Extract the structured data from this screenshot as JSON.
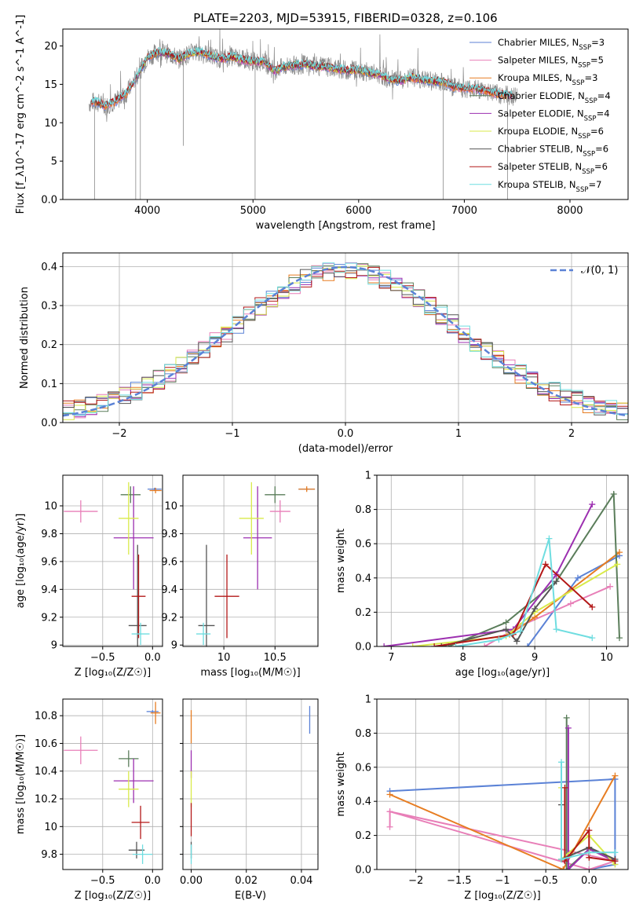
{
  "colors": {
    "Chabrier MILES": "#5b82d6",
    "Salpeter MILES": "#e87fb8",
    "Kroupa MILES": "#e77d22",
    "Chabrier ELODIE": "#5a7d5a",
    "Salpeter ELODIE": "#9c2fb0",
    "Kroupa ELODIE": "#d9ea4a",
    "Chabrier STELIB": "#555555",
    "Salpeter STELIB": "#b31818",
    "Kroupa STELIB": "#6fdde0",
    "gauss": "#5b82d6"
  },
  "chart_data": [
    {
      "type": "line",
      "title": "PLATE=2203, MJD=53915, FIBERID=0328, z=0.106",
      "xlabel": "wavelength [Angstrom, rest frame]",
      "ylabel": "Flux [f_λ10^-17 erg cm^-2 s^-1 A^-1]",
      "xlim": [
        3200,
        8550
      ],
      "ylim": [
        0,
        22.2
      ],
      "xticks": [
        4000,
        5000,
        6000,
        7000,
        8000
      ],
      "yticks": [
        0,
        5,
        10,
        15,
        20
      ],
      "legend_position": "top-right",
      "spectrum_x": [
        3450,
        3500,
        3600,
        3700,
        3800,
        3900,
        4000,
        4100,
        4200,
        4300,
        4400,
        4500,
        4600,
        4700,
        4800,
        4900,
        5000,
        5100,
        5200,
        5300,
        5400,
        5500,
        5600,
        5700,
        5800,
        5900,
        6000,
        6100,
        6200,
        6300,
        6400,
        6500,
        6600,
        6700,
        6800,
        6900,
        7000,
        7100,
        7200,
        7300,
        7400,
        7500
      ],
      "spectrum_y": [
        12.5,
        12.8,
        12.2,
        12.8,
        13.8,
        16,
        18.5,
        19.2,
        19.0,
        18.3,
        19.0,
        19.3,
        18.7,
        18.3,
        18.6,
        18.2,
        18.0,
        18.0,
        16.8,
        17.3,
        17.5,
        17.6,
        17.3,
        17.3,
        17.0,
        16.8,
        16.9,
        16.5,
        16.3,
        15.6,
        15.5,
        15.9,
        15.6,
        15.4,
        15.4,
        14.6,
        14.5,
        14.4,
        14.2,
        13.8,
        13.6,
        13.4
      ],
      "series": [
        {
          "name": "Chabrier MILES, N_SSP=3",
          "label_main": "Chabrier MILES, N",
          "label_sub": "SSP",
          "label_tail": "=3"
        },
        {
          "name": "Salpeter MILES, N_SSP=5",
          "label_main": "Salpeter MILES, N",
          "label_sub": "SSP",
          "label_tail": "=5"
        },
        {
          "name": "Kroupa MILES, N_SSP=3",
          "label_main": "Kroupa MILES, N",
          "label_sub": "SSP",
          "label_tail": "=3"
        },
        {
          "name": "Chabrier ELODIE, N_SSP=4",
          "label_main": "Chabrier ELODIE, N",
          "label_sub": "SSP",
          "label_tail": "=4"
        },
        {
          "name": "Salpeter ELODIE, N_SSP=4",
          "label_main": "Salpeter ELODIE, N",
          "label_sub": "SSP",
          "label_tail": "=4"
        },
        {
          "name": "Kroupa ELODIE, N_SSP=6",
          "label_main": "Kroupa ELODIE, N",
          "label_sub": "SSP",
          "label_tail": "=6"
        },
        {
          "name": "Chabrier STELIB, N_SSP=6",
          "label_main": "Chabrier STELIB, N",
          "label_sub": "SSP",
          "label_tail": "=6"
        },
        {
          "name": "Salpeter STELIB, N_SSP=6",
          "label_main": "Salpeter STELIB, N",
          "label_sub": "SSP",
          "label_tail": "=6"
        },
        {
          "name": "Kroupa STELIB, N_SSP=7",
          "label_main": "Kroupa STELIB, N",
          "label_sub": "SSP",
          "label_tail": "=7"
        }
      ]
    },
    {
      "type": "histogram",
      "xlabel": "(data-model)/error",
      "ylabel": "Normed distribution",
      "xlim": [
        -2.5,
        2.5
      ],
      "ylim": [
        0,
        0.435
      ],
      "xticks": [
        -2,
        -1,
        0,
        1,
        2
      ],
      "yticks": [
        0.0,
        0.1,
        0.2,
        0.3,
        0.4
      ],
      "grid": true,
      "bin_width": 0.1,
      "legend": "𝒩(0, 1)",
      "legend_position": "top-right",
      "gaussian": {
        "mean": 0,
        "sigma": 1
      }
    },
    {
      "type": "errorbar",
      "xlabel": "Z [log₁₀(Z/Z☉)]",
      "ylabel": "age  [log₁₀(age/yr)]",
      "xlim": [
        -0.9,
        0.1
      ],
      "ylim": [
        8.99,
        10.22
      ],
      "xticks": [
        -0.5,
        0.0
      ],
      "yticks": [
        9.0,
        9.2,
        9.4,
        9.6,
        9.8,
        10.0
      ],
      "grid": true,
      "points": [
        {
          "series": "Chabrier MILES",
          "x": 0.02,
          "xerr": 0.07,
          "y": 10.12,
          "yerr": 0.01
        },
        {
          "series": "Salpeter MILES",
          "x": -0.72,
          "xerr": 0.17,
          "y": 9.96,
          "yerr": 0.08
        },
        {
          "series": "Kroupa MILES",
          "x": 0.03,
          "xerr": 0.06,
          "y": 10.11,
          "yerr": 0.02
        },
        {
          "series": "Chabrier ELODIE",
          "x": -0.22,
          "xerr": 0.1,
          "y": 10.08,
          "yerr": 0.06
        },
        {
          "series": "Salpeter ELODIE",
          "x": -0.19,
          "xerr": 0.2,
          "y": 9.77,
          "yerr": 0.37
        },
        {
          "series": "Kroupa ELODIE",
          "x": -0.24,
          "xerr": 0.1,
          "y": 9.91,
          "yerr": 0.26
        },
        {
          "series": "Chabrier STELIB",
          "x": -0.15,
          "xerr": 0.09,
          "y": 9.14,
          "yerr": 0.58
        },
        {
          "series": "Salpeter STELIB",
          "x": -0.14,
          "xerr": 0.07,
          "y": 9.35,
          "yerr": 0.3
        },
        {
          "series": "Kroupa STELIB",
          "x": -0.12,
          "xerr": 0.09,
          "y": 9.08,
          "yerr": 0.08
        }
      ]
    },
    {
      "type": "errorbar",
      "xlabel": "mass [log₁₀(M/M☉)]",
      "xlim": [
        9.6,
        10.92
      ],
      "ylim": [
        8.99,
        10.22
      ],
      "xticks": [
        10.0,
        10.5
      ],
      "yticks": [
        9.0,
        9.2,
        9.4,
        9.6,
        9.8,
        10.0
      ],
      "grid": true,
      "points": [
        {
          "series": "Chabrier MILES",
          "x": 10.81,
          "xerr": 0.08,
          "y": 10.12,
          "yerr": 0.01
        },
        {
          "series": "Salpeter MILES",
          "x": 10.55,
          "xerr": 0.1,
          "y": 9.96,
          "yerr": 0.08
        },
        {
          "series": "Kroupa MILES",
          "x": 10.81,
          "xerr": 0.08,
          "y": 10.12,
          "yerr": 0.02
        },
        {
          "series": "Chabrier ELODIE",
          "x": 10.5,
          "xerr": 0.1,
          "y": 10.08,
          "yerr": 0.06
        },
        {
          "series": "Salpeter ELODIE",
          "x": 10.33,
          "xerr": 0.14,
          "y": 9.77,
          "yerr": 0.37
        },
        {
          "series": "Kroupa ELODIE",
          "x": 10.27,
          "xerr": 0.12,
          "y": 9.91,
          "yerr": 0.26
        },
        {
          "series": "Chabrier STELIB",
          "x": 9.83,
          "xerr": 0.08,
          "y": 9.14,
          "yerr": 0.58
        },
        {
          "series": "Salpeter STELIB",
          "x": 10.03,
          "xerr": 0.12,
          "y": 9.35,
          "yerr": 0.3
        },
        {
          "series": "Kroupa STELIB",
          "x": 9.8,
          "xerr": 0.07,
          "y": 9.08,
          "yerr": 0.08
        }
      ]
    },
    {
      "type": "line",
      "xlabel": "age  [log₁₀(age/yr)]",
      "ylabel": "mass weight",
      "xlim": [
        6.8,
        10.3
      ],
      "ylim": [
        0,
        1
      ],
      "xticks": [
        7,
        8,
        9,
        10
      ],
      "yticks": [
        0.0,
        0.2,
        0.4,
        0.6,
        0.8,
        1.0
      ],
      "grid": true,
      "series": [
        {
          "name": "Chabrier MILES",
          "x": [
            8.9,
            9.6,
            10.18
          ],
          "y": [
            0.0,
            0.4,
            0.53
          ]
        },
        {
          "name": "Salpeter MILES",
          "x": [
            8.3,
            8.8,
            9.5,
            10.05
          ],
          "y": [
            0.0,
            0.12,
            0.25,
            0.35
          ]
        },
        {
          "name": "Kroupa MILES",
          "x": [
            8.65,
            9.0,
            10.18
          ],
          "y": [
            0.07,
            0.17,
            0.55
          ]
        },
        {
          "name": "Chabrier ELODIE",
          "x": [
            7.8,
            8.6,
            9.3,
            10.1,
            10.18
          ],
          "y": [
            0.0,
            0.14,
            0.38,
            0.89,
            0.05
          ]
        },
        {
          "name": "Salpeter ELODIE",
          "x": [
            6.9,
            8.7,
            9.3,
            9.8
          ],
          "y": [
            0.0,
            0.1,
            0.42,
            0.83
          ]
        },
        {
          "name": "Kroupa ELODIE",
          "x": [
            7.3,
            8.6,
            9.0,
            10.15
          ],
          "y": [
            0.0,
            0.06,
            0.2,
            0.48
          ]
        },
        {
          "name": "Chabrier STELIB",
          "x": [
            7.7,
            8.6,
            8.75,
            9.0,
            9.3
          ],
          "y": [
            0.0,
            0.1,
            0.03,
            0.22,
            0.38
          ]
        },
        {
          "name": "Salpeter STELIB",
          "x": [
            7.6,
            8.7,
            9.15,
            9.8
          ],
          "y": [
            0.0,
            0.07,
            0.48,
            0.23
          ]
        },
        {
          "name": "Kroupa STELIB",
          "x": [
            7.9,
            8.5,
            8.8,
            9.2,
            9.3,
            9.8
          ],
          "y": [
            0.0,
            0.04,
            0.09,
            0.63,
            0.1,
            0.05
          ]
        }
      ]
    },
    {
      "type": "errorbar",
      "xlabel": "Z [log₁₀(Z/Z☉)]",
      "ylabel": "mass [log₁₀(M/M☉)]",
      "xlim": [
        -0.9,
        0.1
      ],
      "ylim": [
        9.69,
        10.92
      ],
      "xticks": [
        -0.5,
        0.0
      ],
      "yticks": [
        9.8,
        10.0,
        10.2,
        10.4,
        10.6,
        10.8
      ],
      "grid": true,
      "points": [
        {
          "series": "Chabrier MILES",
          "x": 0.0,
          "xerr": 0.06,
          "y": 10.83,
          "yerr": 0.01
        },
        {
          "series": "Salpeter MILES",
          "x": -0.72,
          "xerr": 0.17,
          "y": 10.55,
          "yerr": 0.1
        },
        {
          "series": "Kroupa MILES",
          "x": 0.03,
          "xerr": 0.05,
          "y": 10.82,
          "yerr": 0.08
        },
        {
          "series": "Chabrier ELODIE",
          "x": -0.24,
          "xerr": 0.1,
          "y": 10.49,
          "yerr": 0.06
        },
        {
          "series": "Salpeter ELODIE",
          "x": -0.19,
          "xerr": 0.2,
          "y": 10.33,
          "yerr": 0.16
        },
        {
          "series": "Kroupa ELODIE",
          "x": -0.24,
          "xerr": 0.1,
          "y": 10.27,
          "yerr": 0.13
        },
        {
          "series": "Chabrier STELIB",
          "x": -0.16,
          "xerr": 0.08,
          "y": 9.83,
          "yerr": 0.06
        },
        {
          "series": "Salpeter STELIB",
          "x": -0.12,
          "xerr": 0.09,
          "y": 10.03,
          "yerr": 0.12
        },
        {
          "series": "Kroupa STELIB",
          "x": -0.1,
          "xerr": 0.1,
          "y": 9.8,
          "yerr": 0.07
        }
      ]
    },
    {
      "type": "errorbar",
      "xlabel": "E(B-V)",
      "xlim": [
        -0.003,
        0.046
      ],
      "ylim": [
        9.69,
        10.92
      ],
      "xticks": [
        0.0,
        0.02,
        0.04
      ],
      "xtick_labels": [
        "0.00",
        "0.02",
        "0.04"
      ],
      "yticks": [
        9.8,
        10.0,
        10.2,
        10.4,
        10.6,
        10.8
      ],
      "grid": true,
      "points": [
        {
          "series": "Chabrier MILES",
          "x": 0.043,
          "y": 10.77,
          "yerr": 0.1
        },
        {
          "series": "Kroupa MILES",
          "x": 0.0,
          "y": 10.72,
          "yerr": 0.12
        },
        {
          "series": "Salpeter ELODIE",
          "x": 0.0,
          "y": 10.45,
          "yerr": 0.1
        },
        {
          "series": "Kroupa ELODIE",
          "x": 0.0,
          "y": 10.27,
          "yerr": 0.13
        },
        {
          "series": "Salpeter STELIB",
          "x": 0.0,
          "y": 10.05,
          "yerr": 0.12
        },
        {
          "series": "Chabrier STELIB",
          "x": 0.0,
          "y": 9.83,
          "yerr": 0.06
        },
        {
          "series": "Kroupa STELIB",
          "x": 0.0,
          "y": 9.8,
          "yerr": 0.07
        }
      ]
    },
    {
      "type": "line",
      "xlabel": "Z [log₁₀(Z/Z☉)]",
      "ylabel": "mass weight",
      "xlim": [
        -2.45,
        0.45
      ],
      "ylim": [
        0,
        1
      ],
      "xticks": [
        -2.0,
        -1.5,
        -1.0,
        -0.5,
        0.0
      ],
      "yticks": [
        0.0,
        0.2,
        0.4,
        0.6,
        0.8,
        1.0
      ],
      "grid": true,
      "series": [
        {
          "name": "Chabrier MILES",
          "x": [
            0.3,
            -2.3,
            0.3,
            0.3,
            0.0
          ],
          "y": [
            0.53,
            0.46,
            0.53,
            0.03,
            0.0
          ]
        },
        {
          "name": "Salpeter MILES",
          "x": [
            -2.3,
            -2.3,
            0.0,
            0.3,
            -2.3
          ],
          "y": [
            0.25,
            0.34,
            0.0,
            0.05,
            0.34
          ]
        },
        {
          "name": "Kroupa MILES",
          "x": [
            -2.3,
            -0.3,
            0.3
          ],
          "y": [
            0.44,
            0.0,
            0.55
          ]
        },
        {
          "name": "Chabrier ELODIE",
          "x": [
            -0.26,
            -0.26,
            0.0,
            0.3
          ],
          "y": [
            0.89,
            0.0,
            0.12,
            0.05
          ]
        },
        {
          "name": "Salpeter ELODIE",
          "x": [
            -0.24,
            -0.24,
            0.0,
            0.3
          ],
          "y": [
            0.83,
            0.0,
            0.12,
            0.05
          ]
        },
        {
          "name": "Kroupa ELODIE",
          "x": [
            -0.32,
            -0.32,
            0.0,
            0.3
          ],
          "y": [
            0.48,
            0.06,
            0.2,
            0.03
          ]
        },
        {
          "name": "Chabrier STELIB",
          "x": [
            -0.32,
            -0.32,
            0.0,
            0.3
          ],
          "y": [
            0.38,
            0.06,
            0.13,
            0.06
          ]
        },
        {
          "name": "Salpeter STELIB",
          "x": [
            -0.28,
            -0.28,
            0.0,
            0.0,
            0.3
          ],
          "y": [
            0.48,
            0.05,
            0.23,
            0.07,
            0.05
          ]
        },
        {
          "name": "Kroupa STELIB",
          "x": [
            -0.32,
            -0.32,
            0.0,
            0.3
          ],
          "y": [
            0.63,
            0.06,
            0.1,
            0.1
          ]
        }
      ]
    }
  ]
}
